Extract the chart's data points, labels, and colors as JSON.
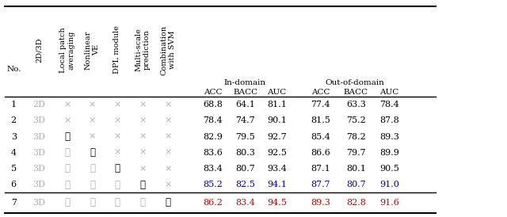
{
  "rows": [
    {
      "no": "1",
      "dim": "2D",
      "lpa": 0,
      "nl": 0,
      "dpl": 0,
      "ms": 0,
      "svm": 0,
      "in_acc": "68.8",
      "in_bacc": "64.1",
      "in_auc": "81.1",
      "out_acc": "77.4",
      "out_bacc": "63.3",
      "out_auc": "78.4",
      "color": "default"
    },
    {
      "no": "2",
      "dim": "3D",
      "lpa": 0,
      "nl": 0,
      "dpl": 0,
      "ms": 0,
      "svm": 0,
      "in_acc": "78.4",
      "in_bacc": "74.7",
      "in_auc": "90.1",
      "out_acc": "81.5",
      "out_bacc": "75.2",
      "out_auc": "87.8",
      "color": "default"
    },
    {
      "no": "3",
      "dim": "3D",
      "lpa": 1,
      "nl": 0,
      "dpl": 0,
      "ms": 0,
      "svm": 0,
      "in_acc": "82.9",
      "in_bacc": "79.5",
      "in_auc": "92.7",
      "out_acc": "85.4",
      "out_bacc": "78.2",
      "out_auc": "89.3",
      "color": "default"
    },
    {
      "no": "4",
      "dim": "3D",
      "lpa": 1,
      "nl": 1,
      "dpl": 0,
      "ms": 0,
      "svm": 0,
      "in_acc": "83.6",
      "in_bacc": "80.3",
      "in_auc": "92.5",
      "out_acc": "86.6",
      "out_bacc": "79.7",
      "out_auc": "89.9",
      "color": "default"
    },
    {
      "no": "5",
      "dim": "3D",
      "lpa": 1,
      "nl": 1,
      "dpl": 1,
      "ms": 0,
      "svm": 0,
      "in_acc": "83.4",
      "in_bacc": "80.7",
      "in_auc": "93.4",
      "out_acc": "87.1",
      "out_bacc": "80.1",
      "out_auc": "90.5",
      "color": "default"
    },
    {
      "no": "6",
      "dim": "3D",
      "lpa": 1,
      "nl": 1,
      "dpl": 1,
      "ms": 1,
      "svm": 0,
      "in_acc": "85.2",
      "in_bacc": "82.5",
      "in_auc": "94.1",
      "out_acc": "87.7",
      "out_bacc": "80.7",
      "out_auc": "91.0",
      "color": "blue"
    },
    {
      "no": "7",
      "dim": "3D",
      "lpa": 1,
      "nl": 1,
      "dpl": 1,
      "ms": 1,
      "svm": 1,
      "in_acc": "86.2",
      "in_bacc": "83.4",
      "in_auc": "94.5",
      "out_acc": "89.3",
      "out_bacc": "82.8",
      "out_auc": "91.6",
      "color": "red"
    }
  ],
  "header_group1": "In-domain",
  "header_group2": "Out-of-domain",
  "col_headers": [
    "ACC",
    "BACC",
    "AUC",
    "ACC",
    "BACC",
    "AUC"
  ],
  "rotated_labels": [
    "2D/3D",
    "Local patch\naveraging",
    "Nonlinear\nVE",
    "DPL module",
    "Multi-scale\nprediction",
    "Combination\nwith SVM"
  ],
  "check_bold": "✓",
  "check_light": "✓",
  "cross_symbol": "×",
  "figsize": [
    6.4,
    2.74
  ],
  "dpi": 100,
  "color_blue": "#0000cc",
  "color_red": "#cc0000",
  "color_gray_dim": "#b0b0b0",
  "color_gray_mark": "#b0b0b0"
}
